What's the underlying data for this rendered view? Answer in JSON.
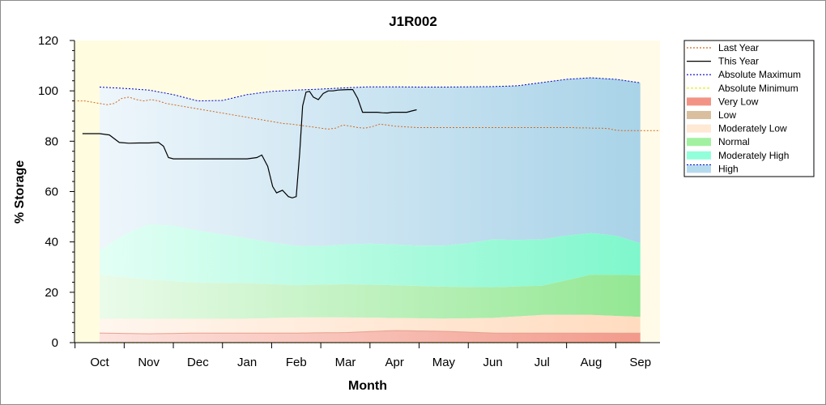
{
  "chart_data": {
    "type": "area",
    "title": "J1R002",
    "xlabel": "Month",
    "ylabel": "% Storage",
    "categories": [
      "Oct",
      "Nov",
      "Dec",
      "Jan",
      "Feb",
      "Mar",
      "Apr",
      "May",
      "Jun",
      "Jul",
      "Aug",
      "Sep"
    ],
    "ylim": [
      0,
      120
    ],
    "yticks": [
      0,
      20,
      40,
      60,
      80,
      100,
      120
    ],
    "legend_position": "right",
    "colors": {
      "plot_background": "#fffde6",
      "last_year": "#d2691e",
      "this_year": "#000000",
      "absolute_maximum": "#0000cd",
      "absolute_minimum": "#e6e600",
      "very_low": "#f08070",
      "low": "#d2b48c",
      "moderately_low": "#ffe4cc",
      "normal": "#90ee90",
      "moderately_high": "#7fffd4",
      "high": "#a8d4ea"
    },
    "series": [
      {
        "name": "Last Year",
        "x": [
          -0.45,
          -0.3,
          -0.15,
          0,
          0.15,
          0.3,
          0.45,
          0.6,
          0.75,
          0.9,
          1.05,
          1.2,
          1.35,
          1.5,
          1.65,
          1.8,
          1.95,
          2.1,
          2.25,
          2.4,
          2.55,
          2.7,
          2.85,
          3,
          3.15,
          3.3,
          3.45,
          3.6,
          3.75,
          3.9,
          4.05,
          4.2,
          4.35,
          4.5,
          4.65,
          4.8,
          4.95,
          5.1,
          5.25,
          5.4,
          5.55,
          5.7,
          5.85,
          6,
          6.15,
          6.3,
          6.45,
          6.6,
          6.75,
          6.9,
          7.05,
          7.2,
          7.35,
          7.5,
          7.65,
          7.8,
          7.95,
          8.1,
          8.25,
          8.4,
          8.55,
          8.7,
          8.85,
          9,
          9.15,
          9.3,
          9.45,
          9.6,
          9.75,
          9.9,
          10.05,
          10.2,
          10.35,
          10.5,
          10.65,
          10.8,
          10.95,
          11.1,
          11.25,
          11.4
        ],
        "values": [
          96,
          96,
          95.5,
          95,
          94.5,
          95,
          97,
          97.5,
          96.5,
          96,
          96.5,
          96,
          95,
          94.5,
          94,
          93.5,
          93,
          92.5,
          92,
          91.5,
          91,
          90.5,
          90,
          89.5,
          89,
          88.5,
          88,
          87.5,
          87,
          86.8,
          86.4,
          86,
          85.6,
          85.2,
          84.8,
          85.2,
          86.4,
          86,
          85.4,
          85.2,
          85.8,
          86.8,
          86.4,
          86,
          85.8,
          85.6,
          85.4,
          85.4,
          85.4,
          85.4,
          85.4,
          85.4,
          85.4,
          85.4,
          85.4,
          85.4,
          85.4,
          85.4,
          85.4,
          85.4,
          85.4,
          85.4,
          85.4,
          85.4,
          85.4,
          85.4,
          85.4,
          85.4,
          85.3,
          85.3,
          85.2,
          85.2,
          85,
          84.4,
          84.2,
          84.2,
          84.2,
          84.2,
          84.2,
          84.2
        ]
      },
      {
        "name": "This Year",
        "x": [
          -0.35,
          0,
          0.2,
          0.4,
          0.6,
          0.8,
          1.0,
          1.2,
          1.3,
          1.4,
          1.5,
          1.6,
          1.8,
          2.0,
          2.2,
          2.4,
          2.6,
          2.8,
          3.0,
          3.2,
          3.3,
          3.42,
          3.52,
          3.6,
          3.72,
          3.84,
          3.92,
          4.0,
          4.07,
          4.13,
          4.2,
          4.27,
          4.35,
          4.45,
          4.55,
          4.65,
          4.75,
          4.85,
          4.95,
          5.05,
          5.15,
          5.25,
          5.35,
          5.45,
          5.55,
          5.65,
          5.75,
          5.85,
          5.95,
          6.05,
          6.15,
          6.25,
          6.35,
          6.45
        ],
        "values": [
          83,
          83,
          82.5,
          79.5,
          79.2,
          79.3,
          79.3,
          79.5,
          78,
          73.5,
          73,
          73,
          73,
          73,
          73,
          73,
          73,
          73,
          73,
          73.5,
          74.5,
          70,
          62,
          59.5,
          60.5,
          58,
          57.5,
          58,
          75,
          94,
          99.5,
          99.8,
          97.5,
          96.5,
          99,
          100,
          100,
          100.3,
          100.4,
          100.5,
          100.5,
          97,
          91.5,
          91.5,
          91.5,
          91.5,
          91.3,
          91.2,
          91.5,
          91.5,
          91.5,
          91.5,
          92,
          92.5
        ]
      },
      {
        "name": "Absolute Maximum",
        "x": [
          0,
          0.5,
          1,
          1.5,
          2,
          2.5,
          3,
          3.5,
          4,
          4.5,
          5,
          5.5,
          6,
          6.5,
          7,
          7.5,
          8,
          8.5,
          9,
          9.5,
          10,
          10.5,
          11
        ],
        "values": [
          101.5,
          101,
          100.3,
          98.5,
          96,
          96.2,
          98.5,
          99.8,
          100.3,
          100.7,
          101.2,
          101.6,
          101.6,
          101.5,
          101.5,
          101.6,
          101.7,
          102,
          103.3,
          104.6,
          105.2,
          104.6,
          103.2
        ]
      },
      {
        "name": "Absolute Minimum",
        "x": [
          0,
          11
        ],
        "values": [
          0,
          0
        ]
      },
      {
        "name": "Very Low",
        "x": [
          0,
          1,
          2,
          3,
          4,
          5,
          6,
          7,
          8,
          9,
          10,
          11
        ],
        "values": [
          3.8,
          3.5,
          3.8,
          3.8,
          3.8,
          4,
          4.8,
          4.5,
          3.8,
          3.8,
          3.8,
          3.8
        ]
      },
      {
        "name": "Low",
        "x": [
          0,
          1,
          2,
          3,
          4,
          5,
          6,
          7,
          8,
          9,
          10,
          11
        ],
        "values": [
          3.8,
          3.5,
          3.8,
          3.8,
          3.8,
          4,
          4.8,
          4.5,
          3.8,
          3.8,
          3.8,
          3.8
        ]
      },
      {
        "name": "Moderately Low",
        "x": [
          0,
          1,
          2,
          3,
          4,
          5,
          6,
          7,
          8,
          9,
          10,
          11
        ],
        "values": [
          9.5,
          9.5,
          9.5,
          9.5,
          10,
          10,
          9.8,
          9.5,
          9.8,
          11,
          11,
          10.2
        ]
      },
      {
        "name": "Normal",
        "x": [
          0,
          1,
          2,
          3,
          4,
          5,
          6,
          7,
          8,
          9,
          10,
          11
        ],
        "values": [
          27,
          25,
          23.8,
          23.6,
          22.8,
          23.2,
          22.8,
          22.2,
          22,
          22.6,
          27,
          26.8
        ]
      },
      {
        "name": "Moderately High",
        "x": [
          0,
          0.5,
          1,
          1.5,
          2,
          2.5,
          3,
          3.5,
          4,
          4.5,
          5,
          5.5,
          6,
          6.5,
          7,
          7.5,
          8,
          8.5,
          9,
          9.5,
          10,
          10.5,
          11
        ],
        "values": [
          36.5,
          43,
          47,
          46.5,
          44.5,
          43,
          41.5,
          39.8,
          38.5,
          38.3,
          39,
          39.3,
          39,
          38.5,
          38.5,
          39.5,
          41,
          40.8,
          41,
          42.5,
          43.5,
          42.5,
          39.5
        ]
      },
      {
        "name": "High",
        "x": [
          0,
          0.5,
          1,
          1.5,
          2,
          2.5,
          3,
          3.5,
          4,
          4.5,
          5,
          5.5,
          6,
          6.5,
          7,
          7.5,
          8,
          8.5,
          9,
          9.5,
          10,
          10.5,
          11
        ],
        "values": [
          101.5,
          101,
          100.3,
          98.5,
          96,
          96.2,
          98.5,
          99.8,
          100.3,
          100.7,
          101.2,
          101.6,
          101.6,
          101.5,
          101.5,
          101.6,
          101.7,
          102,
          103.3,
          104.6,
          105.2,
          104.6,
          103.2
        ]
      }
    ]
  }
}
